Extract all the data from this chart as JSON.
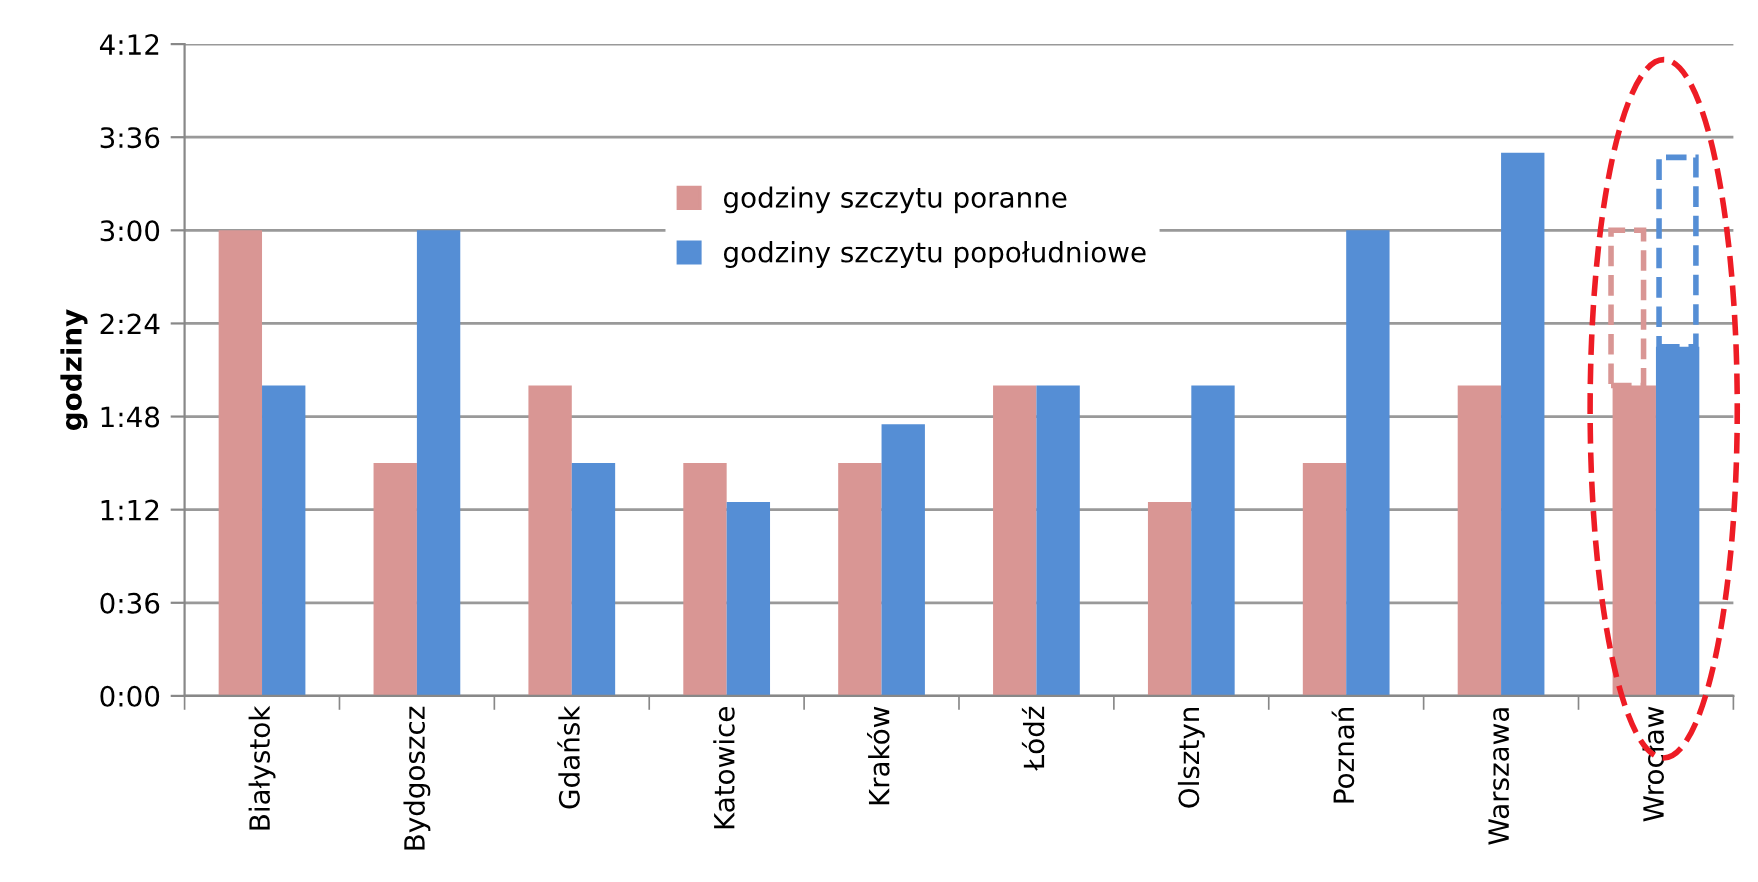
{
  "chart_data": {
    "type": "bar",
    "ylabel": "godziny",
    "categories": [
      "Białystok",
      "Bydgoszcz",
      "Gdańsk",
      "Katowice",
      "Kraków",
      "Łódź",
      "Olsztyn",
      "Poznań",
      "Warszawa",
      "Wrocław"
    ],
    "series": [
      {
        "name": "godziny szczytu poranne",
        "color": "#d99694",
        "values": [
          3.0,
          1.5,
          2.0,
          1.5,
          1.5,
          2.0,
          1.25,
          1.5,
          2.0,
          2.0
        ]
      },
      {
        "name": "godziny szczytu popołudniowe",
        "color": "#558ed5",
        "values": [
          2.0,
          3.0,
          1.5,
          1.25,
          1.75,
          2.0,
          2.0,
          3.0,
          3.5,
          2.25
        ]
      }
    ],
    "ylim": [
      0,
      4.2
    ],
    "yticks": [
      {
        "value": 0,
        "label": "0:00"
      },
      {
        "value": 0.6,
        "label": "0:36"
      },
      {
        "value": 1.2,
        "label": "1:12"
      },
      {
        "value": 1.8,
        "label": "1:48"
      },
      {
        "value": 2.4,
        "label": "2:24"
      },
      {
        "value": 3.0,
        "label": "3:00"
      },
      {
        "value": 3.6,
        "label": "3:36"
      },
      {
        "value": 4.2,
        "label": "4:12"
      }
    ],
    "grid": "y",
    "legend": "top"
  }
}
